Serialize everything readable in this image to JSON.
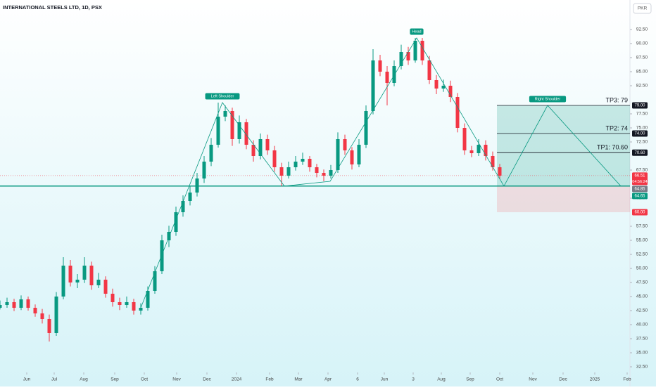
{
  "chart_data": {
    "type": "candlestick",
    "title": "INTERNATIONAL STEELS LTD, 1D, PSX",
    "currency": "PKR",
    "up_color": "#089981",
    "down_color": "#f23645",
    "xlim": [
      0,
      89.5
    ],
    "xticks": [
      {
        "value": 3.8,
        "label": "Jun"
      },
      {
        "value": 7.7,
        "label": "Jul"
      },
      {
        "value": 11.9,
        "label": "Aug"
      },
      {
        "value": 16.3,
        "label": "Sep"
      },
      {
        "value": 20.5,
        "label": "Oct"
      },
      {
        "value": 25.1,
        "label": "Nov"
      },
      {
        "value": 29.4,
        "label": "Dec"
      },
      {
        "value": 33.6,
        "label": "2024"
      },
      {
        "value": 38.3,
        "label": "Feb"
      },
      {
        "value": 42.4,
        "label": "Mar"
      },
      {
        "value": 46.6,
        "label": "Apr"
      },
      {
        "value": 50.8,
        "label": "6"
      },
      {
        "value": 54.6,
        "label": "Jun"
      },
      {
        "value": 58.7,
        "label": "3"
      },
      {
        "value": 62.7,
        "label": "Aug"
      },
      {
        "value": 66.8,
        "label": "Sep"
      },
      {
        "value": 71.0,
        "label": "Oct"
      },
      {
        "value": 75.7,
        "label": "Nov"
      },
      {
        "value": 80.0,
        "label": "Dec"
      },
      {
        "value": 84.5,
        "label": "2025"
      },
      {
        "value": 89.1,
        "label": "Feb"
      }
    ],
    "ylim": [
      32.5,
      92.5
    ],
    "yticks": [
      {
        "value": 32.5,
        "label": "32.50"
      },
      {
        "value": 35,
        "label": "35.00"
      },
      {
        "value": 37.5,
        "label": "37.50"
      },
      {
        "value": 40,
        "label": "40.00"
      },
      {
        "value": 42.5,
        "label": "42.50"
      },
      {
        "value": 45,
        "label": "45.00"
      },
      {
        "value": 47.5,
        "label": "47.50"
      },
      {
        "value": 50,
        "label": "50.00"
      },
      {
        "value": 52.5,
        "label": "52.50"
      },
      {
        "value": 55,
        "label": "55.00"
      },
      {
        "value": 57.5,
        "label": "57.50"
      },
      {
        "value": 62.5,
        "label": "62.50"
      },
      {
        "value": 67.5,
        "label": "67.50"
      },
      {
        "value": 72.5,
        "label": "72.50"
      },
      {
        "value": 75,
        "label": "75.00"
      },
      {
        "value": 77.5,
        "label": "77.50"
      },
      {
        "value": 82.5,
        "label": "82.50"
      },
      {
        "value": 85,
        "label": "85.00"
      },
      {
        "value": 87.5,
        "label": "87.50"
      },
      {
        "value": 90,
        "label": "90.00"
      },
      {
        "value": 92.5,
        "label": "92.50"
      }
    ],
    "open": [
      43,
      43.5,
      44,
      43,
      44.5,
      43,
      42,
      41,
      38.5,
      45,
      50.5,
      47.5,
      48,
      50.5,
      47,
      48,
      45.5,
      44,
      43.5,
      44,
      42.5,
      43,
      46,
      49.5,
      55,
      56.5,
      60,
      62,
      63.5,
      66,
      69,
      72,
      77,
      78,
      73,
      76,
      72,
      70,
      73,
      71,
      68,
      66.5,
      68,
      69,
      69.5,
      68,
      67,
      66.5,
      67.5,
      73,
      71,
      68.5,
      72,
      78,
      87,
      85,
      83,
      86,
      88.5,
      87,
      90.5,
      87,
      83.5,
      82,
      82.5,
      80.5,
      75,
      71,
      70.5,
      72,
      70,
      68
    ],
    "high": [
      44.3,
      44.8,
      44.6,
      45.2,
      45,
      43.6,
      42.8,
      41.8,
      45.8,
      52,
      51.5,
      49,
      52,
      51.2,
      49.2,
      48.6,
      46.4,
      44.8,
      45,
      44.6,
      43.8,
      46.8,
      50.4,
      56,
      57.6,
      61,
      63,
      64.6,
      67,
      70,
      73.2,
      79.5,
      79,
      78.6,
      77.2,
      76.6,
      72.8,
      74,
      73.8,
      71.8,
      68.8,
      69,
      70,
      70.6,
      70,
      68.6,
      67.6,
      68.4,
      74.2,
      73.8,
      71.6,
      73,
      79,
      89,
      88,
      86,
      87,
      89.8,
      89.4,
      91,
      91,
      87.8,
      84.4,
      83.6,
      83.4,
      81.2,
      75.8,
      71.8,
      73,
      72.8,
      70.8,
      68.6
    ],
    "low": [
      42.7,
      43,
      42.4,
      42.6,
      42.5,
      41.4,
      40.2,
      37,
      38,
      44.5,
      46.8,
      46.5,
      47.4,
      46.2,
      46.5,
      44.8,
      43.2,
      42.6,
      43,
      41.8,
      41.8,
      42.5,
      45.5,
      49,
      53.8,
      55.8,
      59.2,
      61.2,
      62.8,
      65.2,
      68.2,
      71.5,
      76.2,
      71.8,
      72.2,
      71.2,
      69,
      69.4,
      70.2,
      67.2,
      64.65,
      66,
      67.4,
      68.4,
      67.2,
      66.2,
      65.5,
      66,
      67,
      70.2,
      67.6,
      68,
      71.4,
      77.4,
      84.2,
      79,
      82.4,
      85.4,
      86.2,
      86.6,
      86.2,
      82.8,
      81,
      81.4,
      79.6,
      74.2,
      70.2,
      69.8,
      70,
      69.2,
      67.4,
      65.9
    ],
    "close": [
      43.5,
      44,
      43,
      44.5,
      43,
      42,
      41,
      38.5,
      45,
      50.5,
      47.5,
      48,
      50.5,
      47,
      48,
      45.5,
      44,
      43.5,
      44,
      42.5,
      43,
      46,
      49.5,
      55,
      56.5,
      60,
      62,
      63.5,
      66,
      69,
      72,
      77,
      78,
      73,
      76,
      72,
      70,
      73,
      71,
      68,
      66.5,
      68,
      69,
      69.5,
      68,
      67,
      66.5,
      67.5,
      73,
      71,
      68.5,
      72,
      78,
      87,
      85,
      83,
      86,
      88.5,
      87,
      90.5,
      87,
      83.5,
      82,
      82.5,
      80.5,
      75,
      71,
      70.5,
      72,
      70,
      68,
      66.5
    ],
    "neckline": 64.65,
    "current_price": 66.51,
    "pattern": {
      "color": "#089981",
      "x": [
        20,
        31.6,
        40.4,
        46.9,
        59.2,
        71.6,
        77.8,
        88.2
      ],
      "y": [
        43,
        79.5,
        64.65,
        65.5,
        91,
        64.65,
        79,
        64.65
      ]
    },
    "annotations": [
      {
        "label": "Left Shoulder",
        "x": 31.6,
        "y": 79.5
      },
      {
        "label": "Head",
        "x": 59.2,
        "y": 91
      },
      {
        "label": "Right Shoulder",
        "x": 77.8,
        "y": 79
      }
    ],
    "position": {
      "start": 70.6,
      "entry": 64.65,
      "stop": 60
    },
    "targets": [
      {
        "label": "TP3: 79",
        "value": 79
      },
      {
        "label": "TP2: 74",
        "value": 74
      },
      {
        "label": "TP1: 70.60",
        "value": 70.6
      }
    ],
    "price_labels": [
      {
        "value": 79,
        "label": "79.00",
        "color": "#131722"
      },
      {
        "value": 74,
        "label": "74.00",
        "color": "#131722"
      },
      {
        "value": 70.6,
        "label": "70.60",
        "color": "#131722"
      },
      {
        "value": 66.51,
        "label": "66.51",
        "color": "#f23645",
        "sub": "04:56:24"
      },
      {
        "value": 64.65,
        "label": "64.65",
        "color": "#089981"
      },
      {
        "value": 64.85,
        "label": "64.85",
        "color": "#787b86"
      },
      {
        "value": 60,
        "label": "60.00",
        "color": "#f23645"
      }
    ]
  }
}
